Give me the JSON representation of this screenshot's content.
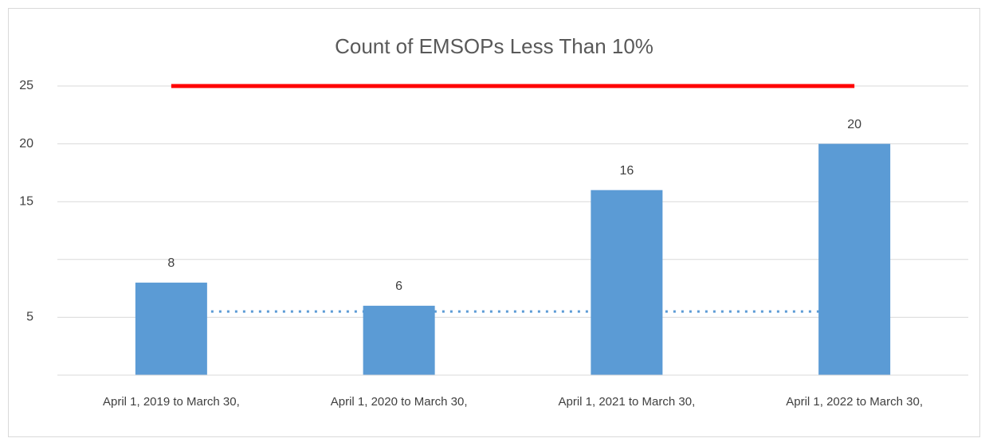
{
  "chart_data": {
    "type": "bar",
    "title": "Count of EMSOPs Less Than 10%",
    "categories": [
      "April 1, 2019 to March 30,",
      "April 1, 2020 to March 30,",
      "April 1, 2021 to March 30,",
      "April 1, 2022 to March 30,"
    ],
    "series": [
      {
        "type": "bar",
        "color": "#5b9bd5",
        "values": [
          8,
          6,
          16,
          20
        ],
        "data_labels": true
      },
      {
        "type": "line",
        "color": "#ff0000",
        "line_style": "solid",
        "values": [
          25,
          25,
          25,
          25
        ]
      },
      {
        "type": "line",
        "color": "#5b9bd5",
        "line_style": "dotted",
        "values": [
          5.5,
          5.5,
          5.5,
          5.5
        ]
      }
    ],
    "ylim": [
      0,
      25
    ],
    "yticks": [
      5,
      15,
      20,
      25
    ],
    "grid": true,
    "gridlines": [
      0,
      5,
      10,
      15,
      20,
      25
    ]
  }
}
